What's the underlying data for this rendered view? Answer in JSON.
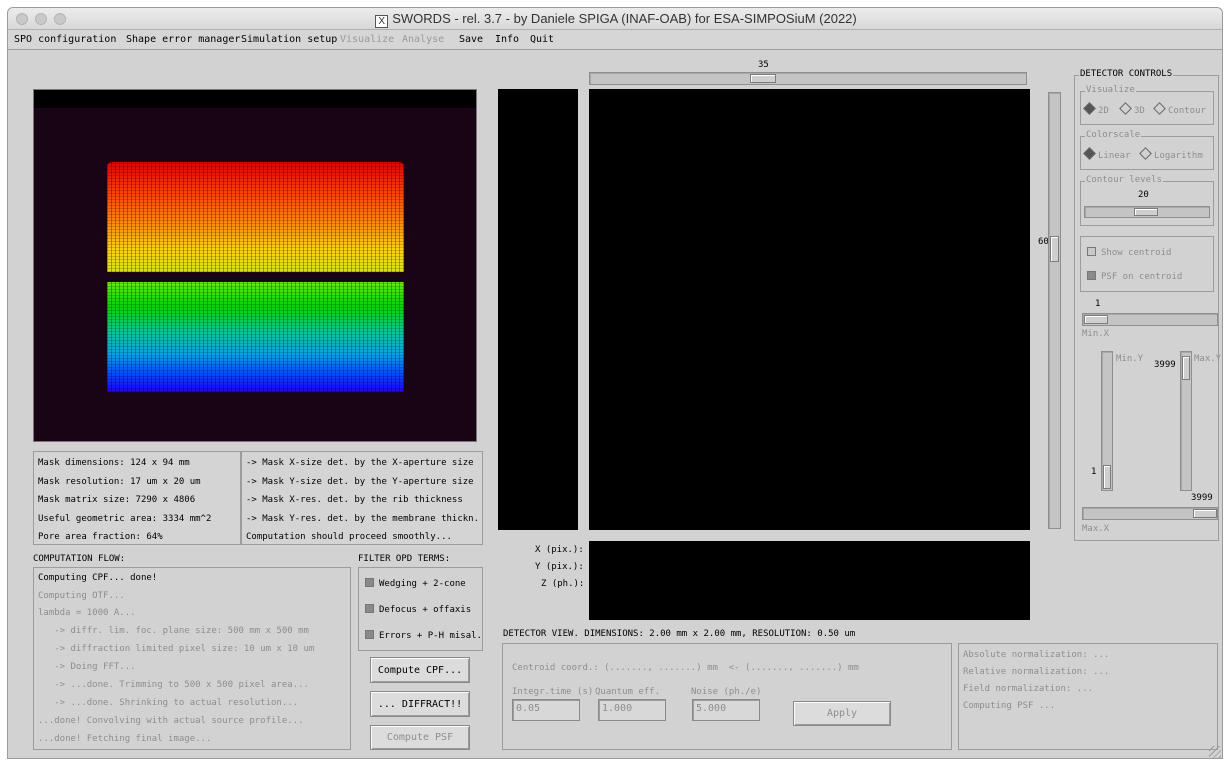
{
  "window": {
    "title": "SWORDS - rel. 3.7 - by Daniele SPIGA (INAF-OAB) for ESA-SIMPOSiuM (2022)",
    "logo_glyph": "X"
  },
  "menu": {
    "items": [
      "SPO configuration",
      "Shape error manager",
      "Simulation setup",
      "Visualize",
      "Analyse",
      "Save",
      "Info",
      "Quit"
    ]
  },
  "mask_info": {
    "left": [
      "Mask dimensions: 124 x 94 mm",
      "Mask resolution: 17 um x 20 um",
      "Mask matrix size: 7290 x 4806",
      "Useful geometric area: 3334 mm^2",
      "Pore area fraction: 64%"
    ],
    "right": [
      "-> Mask X-size det. by the X-aperture size",
      "-> Mask Y-size det. by the Y-aperture size",
      "-> Mask X-res. det. by the rib thickness",
      "-> Mask Y-res. det. by the membrane thickn.",
      "Computation should proceed smoothly..."
    ]
  },
  "computation_flow": {
    "title": "COMPUTATION FLOW:",
    "lines": [
      "Computing CPF... done!",
      "Computing OTF...",
      "lambda = 1000 A...",
      "   -> diffr. lim. foc. plane size: 500 mm x 500 mm",
      "   -> diffraction limited pixel size: 10 um x 10 um",
      "   -> Doing FFT...",
      "   -> ...done. Trimming to 500 x 500 pixel area...",
      "   -> ...done. Shrinking to actual resolution...",
      "...done! Convolving with actual source profile...",
      "...done! Fetching final image..."
    ]
  },
  "filter_opd": {
    "title": "FILTER OPD TERMS:",
    "items": [
      "Wedging + 2-cone",
      "Defocus + offaxis",
      "Errors + P-H misal."
    ]
  },
  "buttons": {
    "compute_cpf": "Compute CPF...",
    "diffract": "... DIFFRACT!!",
    "compute_psf": "Compute PSF",
    "apply": "Apply"
  },
  "coords": {
    "x_label": "X (pix.):",
    "y_label": "Y (pix.):",
    "z_label": "Z (ph.):"
  },
  "sliders": {
    "top_value": "35",
    "right_value": "60"
  },
  "detector_view": {
    "caption": "DETECTOR VIEW. DIMENSIONS: 2.00 mm x 2.00 mm, RESOLUTION: 0.50 um",
    "centroid": "Centroid coord.: (......., .......) mm  <- (......., .......) mm",
    "integ_label": "Integr.time (s)",
    "integ_value": "0.05",
    "qe_label": "Quantum eff.",
    "qe_value": "1.000",
    "noise_label": "Noise (ph./e)",
    "noise_value": "5.000"
  },
  "normalization": {
    "lines": [
      "Absolute normalization: ...",
      "Relative normalization: ...",
      "Field normalization: ...",
      "Computing PSF ..."
    ]
  },
  "detector_controls": {
    "title": "DETECTOR CONTROLS",
    "visualize_title": "Visualize",
    "visualize_options": [
      "2D",
      "3D",
      "Contour"
    ],
    "colorscale_title": "Colorscale",
    "colorscale_options": [
      "Linear",
      "Logarithm"
    ],
    "contour_title": "Contour levels",
    "contour_value": "20",
    "show_centroid": "Show centroid",
    "psf_on_centroid": "PSF on centroid",
    "min_x_value": "1",
    "min_x_label": "Min.X",
    "min_y_label": "Min.Y",
    "max_y_label": "Max.Y",
    "max_y_value": "3999",
    "min_y_value": "1",
    "max_x_value": "3999",
    "max_x_label": "Max.X"
  }
}
